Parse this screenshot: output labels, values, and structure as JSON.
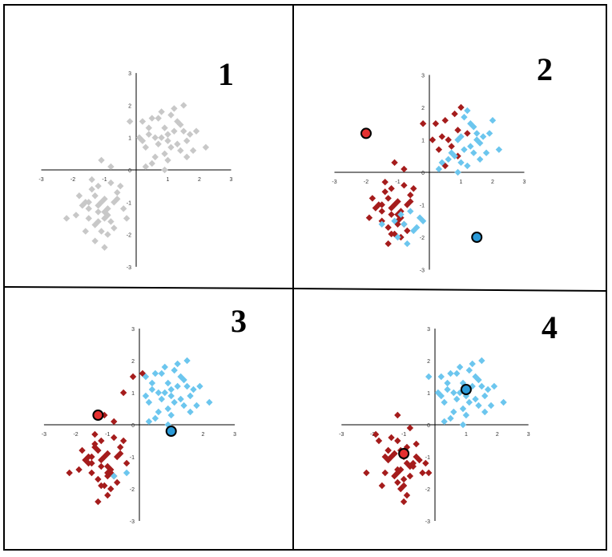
{
  "figure": {
    "panels": [
      {
        "number": "1"
      },
      {
        "number": "2"
      },
      {
        "number": "3"
      },
      {
        "number": "4"
      }
    ]
  },
  "colors": {
    "unassigned": "#c8c8c8",
    "cluster_red": "#a51c1c",
    "cluster_blue": "#6cc6ee",
    "centroid_red": "#e53030",
    "centroid_blue": "#2a9ad8",
    "axis": "#000000",
    "frame": "#000000"
  },
  "chart_data": [
    {
      "type": "scatter",
      "title": "1",
      "xlim": [
        -3,
        3
      ],
      "ylim": [
        -3,
        3
      ],
      "xticks": [
        "-3",
        "-2",
        "-1",
        "0",
        "1",
        "2",
        "3"
      ],
      "yticks": [
        "-3",
        "-2",
        "-1",
        "0",
        "1",
        "2",
        "3"
      ],
      "grid": false,
      "series": [
        {
          "color": "#c8c8c8",
          "marker": "diamond",
          "x": [
            0.2,
            0.5,
            0.8,
            0.9,
            1.2,
            1.0,
            1.1,
            0.4,
            0.7,
            1.3,
            1.5,
            1.6,
            0.3,
            0.6,
            1.4,
            1.7,
            1.8,
            0.9,
            0.5,
            1.0,
            1.2,
            1.5,
            0.8,
            0.2,
            1.1,
            0.6,
            1.9,
            2.2,
            1.3,
            0.4,
            0.7,
            1.6,
            1.0,
            0.3,
            0.9,
            1.4,
            -0.2,
            0.1,
            -0.8,
            -1.1,
            -1.3,
            -1.0,
            -0.7,
            -1.5,
            -1.2,
            -0.9,
            -0.6,
            -1.4,
            -1.6,
            -1.0,
            -1.3,
            -0.8,
            -1.2,
            -0.5,
            -1.7,
            -1.1,
            -0.9,
            -0.4,
            -1.5,
            -1.8,
            -1.2,
            -0.7,
            -1.0,
            -1.3,
            -0.6,
            -1.1,
            -1.9,
            -1.4,
            -0.8,
            -1.0,
            -0.3,
            -1.2,
            -1.6,
            -0.9,
            -2.2,
            -1.5
          ],
          "y": [
            1.5,
            1.6,
            1.8,
            1.3,
            1.2,
            0.9,
            1.7,
            1.1,
            0.8,
            1.5,
            1.2,
            0.9,
            0.7,
            1.0,
            1.4,
            1.1,
            0.6,
            0.5,
            0.2,
            0.3,
            1.9,
            2.0,
            1.0,
            0.9,
            0.7,
            0.4,
            1.2,
            0.7,
            0.8,
            1.3,
            1.6,
            0.4,
            1.1,
            0.1,
            0.0,
            0.6,
            1.5,
            1.0,
            0.1,
            0.3,
            -0.8,
            -0.9,
            -1.0,
            -1.2,
            -1.1,
            -1.4,
            -0.7,
            -0.6,
            -1.0,
            -1.5,
            -1.7,
            -1.6,
            -1.3,
            -0.5,
            -1.1,
            -1.9,
            -2.0,
            -1.2,
            -1.5,
            -0.8,
            -0.5,
            -1.8,
            -1.3,
            -2.2,
            -0.9,
            -1.0,
            -1.4,
            -0.3,
            -0.4,
            -2.4,
            -1.5,
            -1.6,
            -1.9,
            -1.2,
            -1.5,
            -1.0
          ]
        }
      ]
    },
    {
      "type": "scatter",
      "title": "2",
      "xlim": [
        -3,
        3
      ],
      "ylim": [
        -3,
        3
      ],
      "xticks": [
        "-3",
        "-2",
        "-1",
        "0",
        "1",
        "2",
        "3"
      ],
      "yticks": [
        "-3",
        "-2",
        "-1",
        "0",
        "1",
        "2",
        "3"
      ],
      "grid": false,
      "series": [
        {
          "color": "#a51c1c",
          "marker": "diamond",
          "x": [
            0.2,
            0.5,
            0.8,
            0.9,
            1.2,
            1.0,
            0.4,
            0.7,
            0.3,
            0.6,
            0.5,
            0.9,
            -0.2,
            0.1,
            -0.8,
            -1.1,
            -1.3,
            -1.0,
            -0.7,
            -1.5,
            -1.2,
            -0.9,
            -0.6,
            -1.4,
            -1.6,
            -1.0,
            -1.3,
            -0.8,
            -1.2,
            -0.5,
            -1.7,
            -1.1,
            -0.9,
            -1.5,
            -1.8,
            -1.2,
            -0.7,
            -1.0,
            -1.3,
            -0.6,
            -1.1,
            -1.9,
            -1.4,
            -0.8,
            -1.0,
            -1.2,
            -0.9,
            -1.5
          ],
          "y": [
            1.5,
            1.6,
            1.8,
            1.3,
            1.2,
            2.0,
            1.1,
            0.8,
            0.7,
            1.0,
            0.2,
            0.5,
            1.5,
            1.0,
            0.1,
            0.3,
            -0.8,
            -0.9,
            -1.0,
            -1.2,
            -1.1,
            -1.4,
            -0.7,
            -0.6,
            -1.0,
            -1.5,
            -1.7,
            -1.6,
            -1.3,
            -0.5,
            -1.1,
            -1.9,
            -2.0,
            -1.5,
            -0.8,
            -0.5,
            -1.8,
            -1.3,
            -2.2,
            -0.9,
            -1.0,
            -1.4,
            -0.3,
            -0.4,
            -1.6,
            -1.9,
            -1.2,
            -1.0
          ]
        },
        {
          "color": "#6cc6ee",
          "marker": "diamond",
          "x": [
            1.1,
            1.3,
            1.5,
            1.6,
            1.4,
            1.7,
            1.8,
            0.9,
            1.0,
            1.2,
            1.5,
            1.1,
            0.6,
            1.9,
            2.2,
            1.3,
            0.4,
            0.7,
            1.6,
            1.0,
            0.3,
            0.9,
            1.4,
            2.0,
            0.8,
            1.2,
            -0.4,
            -1.1,
            -0.8,
            -0.6,
            -0.3,
            -0.9,
            -1.5,
            -0.7,
            -1.0,
            -0.5,
            -0.2
          ],
          "y": [
            1.7,
            1.5,
            1.2,
            0.9,
            1.4,
            1.1,
            0.6,
            1.0,
            0.3,
            1.9,
            1.0,
            0.7,
            0.4,
            1.2,
            0.7,
            0.8,
            0.3,
            0.6,
            0.4,
            1.1,
            0.1,
            0.0,
            0.6,
            1.6,
            0.5,
            0.2,
            -1.7,
            -1.5,
            -1.6,
            -1.2,
            -1.4,
            -1.3,
            -1.6,
            -2.2,
            -2.0,
            -1.8,
            -1.5
          ]
        },
        {
          "color": "#e53030",
          "marker": "circle",
          "role": "centroid",
          "x": [
            -2.0
          ],
          "y": [
            1.2
          ]
        },
        {
          "color": "#2a9ad8",
          "marker": "circle",
          "role": "centroid",
          "x": [
            1.5
          ],
          "y": [
            -2.0
          ]
        }
      ]
    },
    {
      "type": "scatter",
      "title": "3",
      "xlim": [
        -3,
        3
      ],
      "ylim": [
        -3,
        3
      ],
      "xticks": [
        "-3",
        "-2",
        "-1",
        "0",
        "1",
        "2",
        "3"
      ],
      "yticks": [
        "-3",
        "-2",
        "-1",
        "0",
        "1",
        "2",
        "3"
      ],
      "grid": false,
      "series": [
        {
          "color": "#a51c1c",
          "marker": "diamond",
          "x": [
            -0.2,
            0.1,
            -0.5,
            -0.8,
            -1.1,
            -1.3,
            -1.0,
            -0.7,
            -1.5,
            -1.2,
            -0.9,
            -0.6,
            -1.4,
            -1.6,
            -1.0,
            -1.3,
            -0.8,
            -1.2,
            -0.5,
            -1.7,
            -1.1,
            -0.9,
            -0.4,
            -1.5,
            -1.8,
            -1.2,
            -0.7,
            -1.0,
            -1.3,
            -0.6,
            -1.1,
            -1.9,
            -1.4,
            -0.8,
            -1.0,
            -1.2,
            -1.6,
            -0.9,
            -2.2,
            -1.5,
            -1.4,
            -1.0
          ],
          "y": [
            1.5,
            1.6,
            1.0,
            0.1,
            0.3,
            -0.8,
            -0.9,
            -1.0,
            -1.2,
            -1.1,
            -1.4,
            -0.7,
            -0.6,
            -1.0,
            -1.5,
            -1.7,
            -1.6,
            -1.3,
            -0.5,
            -1.1,
            -1.9,
            -2.0,
            -1.2,
            -1.5,
            -0.8,
            -0.5,
            -1.8,
            -1.3,
            -2.4,
            -0.9,
            -1.0,
            -1.4,
            -0.3,
            -0.4,
            -1.6,
            -1.9,
            -1.2,
            -1.5,
            -1.5,
            -1.0,
            -0.7,
            -2.2
          ]
        },
        {
          "color": "#6cc6ee",
          "marker": "diamond",
          "x": [
            0.2,
            0.5,
            0.8,
            0.9,
            1.2,
            1.0,
            1.1,
            0.4,
            0.7,
            1.3,
            1.5,
            1.6,
            0.3,
            0.6,
            1.4,
            1.7,
            1.8,
            0.9,
            0.5,
            1.0,
            1.2,
            1.5,
            0.8,
            0.2,
            1.1,
            0.6,
            1.9,
            2.2,
            1.3,
            0.4,
            0.7,
            1.6,
            1.0,
            0.3,
            0.9,
            1.4,
            -0.4,
            -0.8
          ],
          "y": [
            1.5,
            1.6,
            1.8,
            1.3,
            1.2,
            0.9,
            1.7,
            1.1,
            0.8,
            1.5,
            1.2,
            0.9,
            0.7,
            1.0,
            1.4,
            1.1,
            0.6,
            0.5,
            0.2,
            0.3,
            1.9,
            2.0,
            1.0,
            0.9,
            0.7,
            0.4,
            1.2,
            0.7,
            0.8,
            1.3,
            1.6,
            0.4,
            1.1,
            0.1,
            0.0,
            0.6,
            -1.5,
            -1.6
          ]
        },
        {
          "color": "#e53030",
          "marker": "circle",
          "role": "centroid",
          "x": [
            -1.3
          ],
          "y": [
            0.3
          ]
        },
        {
          "color": "#2a9ad8",
          "marker": "circle",
          "role": "centroid",
          "x": [
            1.0
          ],
          "y": [
            -0.2
          ]
        }
      ]
    },
    {
      "type": "scatter",
      "title": "4",
      "xlim": [
        -3,
        3
      ],
      "ylim": [
        -3,
        3
      ],
      "xticks": [
        "-3",
        "-2",
        "-1",
        "0",
        "1",
        "2",
        "3"
      ],
      "yticks": [
        "-3",
        "-2",
        "-1",
        "0",
        "1",
        "2",
        "3"
      ],
      "grid": false,
      "series": [
        {
          "color": "#a51c1c",
          "marker": "diamond",
          "x": [
            -1.2,
            -0.8,
            -1.1,
            -1.3,
            -1.0,
            -0.7,
            -1.5,
            -1.2,
            -0.9,
            -0.6,
            -1.4,
            -1.6,
            -1.0,
            -1.3,
            -0.8,
            -1.2,
            -0.5,
            -1.7,
            -1.1,
            -0.9,
            -0.4,
            -1.5,
            -1.8,
            -1.2,
            -0.7,
            -1.0,
            -1.3,
            -0.6,
            -1.1,
            -1.9,
            -1.4,
            -0.8,
            -1.0,
            -0.3,
            -1.2,
            -1.6,
            -0.9,
            -2.2,
            -1.5,
            -0.2
          ],
          "y": [
            0.3,
            -0.1,
            -0.8,
            -0.9,
            -1.0,
            -1.2,
            -1.1,
            -1.4,
            -0.7,
            -0.6,
            -1.0,
            -1.5,
            -1.7,
            -1.6,
            -1.3,
            -0.5,
            -1.1,
            -1.9,
            -2.0,
            -1.2,
            -1.5,
            -0.8,
            -0.5,
            -1.8,
            -1.3,
            -2.4,
            -0.9,
            -1.0,
            -1.4,
            -0.3,
            -0.4,
            -1.6,
            -1.9,
            -1.2,
            -1.5,
            -1.0,
            -2.2,
            -1.5,
            -0.8,
            -1.5
          ]
        },
        {
          "color": "#6cc6ee",
          "marker": "diamond",
          "x": [
            0.2,
            0.5,
            0.8,
            0.9,
            1.2,
            1.0,
            1.1,
            0.4,
            0.7,
            1.3,
            1.5,
            1.6,
            0.3,
            0.6,
            1.4,
            1.7,
            1.8,
            0.9,
            0.5,
            1.0,
            1.2,
            1.5,
            0.8,
            0.2,
            1.1,
            0.6,
            1.9,
            2.2,
            1.3,
            0.4,
            0.7,
            1.6,
            1.0,
            0.3,
            0.9,
            1.4,
            -0.2,
            0.1
          ],
          "y": [
            1.5,
            1.6,
            1.8,
            1.3,
            1.2,
            0.9,
            1.7,
            1.1,
            0.8,
            1.5,
            1.2,
            0.9,
            0.7,
            1.0,
            1.4,
            1.1,
            0.6,
            0.5,
            0.2,
            0.3,
            1.9,
            2.0,
            1.0,
            0.9,
            0.7,
            0.4,
            1.2,
            0.7,
            0.8,
            1.3,
            1.6,
            0.4,
            1.1,
            0.1,
            0.0,
            0.6,
            1.5,
            1.0
          ]
        },
        {
          "color": "#e53030",
          "marker": "circle",
          "role": "centroid",
          "x": [
            -1.0
          ],
          "y": [
            -0.9
          ]
        },
        {
          "color": "#2a9ad8",
          "marker": "circle",
          "role": "centroid",
          "x": [
            1.0
          ],
          "y": [
            1.1
          ]
        }
      ]
    }
  ]
}
